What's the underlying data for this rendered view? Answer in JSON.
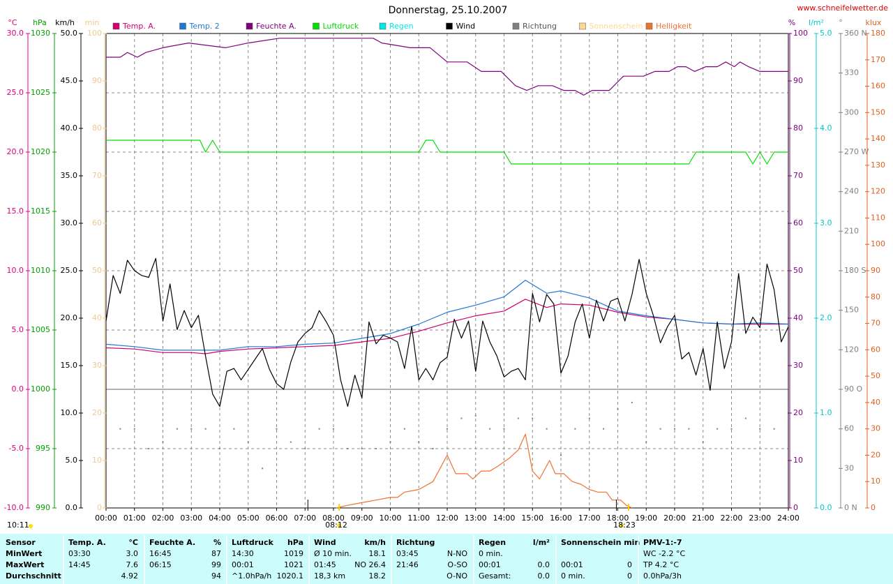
{
  "chart_data": {
    "type": "line",
    "title": "Donnerstag, 25.10.2007",
    "site": "www.schneifelwetter.de",
    "time": "10:11",
    "sunrise": "08:12",
    "sunset": "18:23",
    "grid": true,
    "xlim": [
      0,
      24
    ],
    "xticks": [
      {
        "value": 0,
        "label": "00:00"
      },
      {
        "value": 1,
        "label": "01:00"
      },
      {
        "value": 2,
        "label": "02:00"
      },
      {
        "value": 3,
        "label": "03:00"
      },
      {
        "value": 4,
        "label": "04:00"
      },
      {
        "value": 5,
        "label": "05:00"
      },
      {
        "value": 6,
        "label": "06:00"
      },
      {
        "value": 7,
        "label": "07:00"
      },
      {
        "value": 8,
        "label": "08:00"
      },
      {
        "value": 9,
        "label": "09:00"
      },
      {
        "value": 10,
        "label": "10:00"
      },
      {
        "value": 11,
        "label": "11:00"
      },
      {
        "value": 12,
        "label": "12:00"
      },
      {
        "value": 13,
        "label": "13:00"
      },
      {
        "value": 14,
        "label": "14:00"
      },
      {
        "value": 15,
        "label": "15:00"
      },
      {
        "value": 16,
        "label": "16:00"
      },
      {
        "value": 17,
        "label": "17:00"
      },
      {
        "value": 18,
        "label": "18:00"
      },
      {
        "value": 19,
        "label": "19:00"
      },
      {
        "value": 20,
        "label": "20:00"
      },
      {
        "value": 21,
        "label": "21:00"
      },
      {
        "value": 22,
        "label": "22:00"
      },
      {
        "value": 23,
        "label": "23:00"
      },
      {
        "value": 24,
        "label": "24:00"
      }
    ],
    "axes": [
      {
        "unit": "°C",
        "color": "#e0007c",
        "ylim": [
          -10,
          30
        ],
        "yticks": [
          {
            "value": 30,
            "label": "30.0"
          },
          {
            "value": 25,
            "label": "25.0"
          },
          {
            "value": 20,
            "label": "20.0"
          },
          {
            "value": 15,
            "label": "15.0"
          },
          {
            "value": 10,
            "label": "10.0"
          },
          {
            "value": 5,
            "label": "5.0"
          },
          {
            "value": 0,
            "label": "0.0"
          },
          {
            "value": -5,
            "label": "-5.0"
          },
          {
            "value": -10,
            "label": "-10.0"
          }
        ]
      },
      {
        "unit": "hPa",
        "color": "#00a000",
        "ylim": [
          990,
          1030
        ],
        "yticks": [
          1030,
          1025,
          1020,
          1015,
          1010,
          1005,
          1000,
          995,
          990
        ]
      },
      {
        "unit": "km/h",
        "color": "#000000",
        "ylim": [
          0,
          50
        ],
        "yticks": [
          {
            "value": 50,
            "label": "50.0"
          },
          {
            "value": 45,
            "label": "45.0"
          },
          {
            "value": 40,
            "label": "40.0"
          },
          {
            "value": 35,
            "label": "35.0"
          },
          {
            "value": 30,
            "label": "30.0"
          },
          {
            "value": 25,
            "label": "25.0"
          },
          {
            "value": 20,
            "label": "20.0"
          },
          {
            "value": 15,
            "label": "15.0"
          },
          {
            "value": 10,
            "label": "10.0"
          },
          {
            "value": 5,
            "label": "5.0"
          },
          {
            "value": 0,
            "label": "0.0"
          }
        ]
      },
      {
        "unit": "min",
        "color": "#f0c890",
        "ylim": [
          0,
          100
        ],
        "yticks": [
          100,
          90,
          80,
          70,
          60,
          50,
          40,
          30,
          20,
          10,
          0
        ]
      },
      {
        "unit": "%",
        "color": "#800080",
        "ylim": [
          0,
          100
        ],
        "yticks": [
          100,
          90,
          80,
          70,
          60,
          50,
          40,
          30,
          20,
          10,
          0
        ]
      },
      {
        "unit": "l/m²",
        "color": "#00c8c8",
        "ylim": [
          0,
          5
        ],
        "yticks": [
          {
            "value": 5,
            "label": "5.0"
          },
          {
            "value": 4,
            "label": "4.0"
          },
          {
            "value": 3,
            "label": "3.0"
          },
          {
            "value": 2,
            "label": "2.0"
          },
          {
            "value": 1,
            "label": "1.0"
          },
          {
            "value": 0,
            "label": "0.0"
          }
        ]
      },
      {
        "unit": "°",
        "color": "#808080",
        "ylim": [
          0,
          360
        ],
        "yticks": [
          {
            "value": 360,
            "label": "360 N"
          },
          330,
          300,
          {
            "value": 270,
            "label": "270 W"
          },
          240,
          210,
          {
            "value": 180,
            "label": "180 S"
          },
          150,
          120,
          {
            "value": 90,
            "label": "90 O"
          },
          60,
          30,
          {
            "value": 0,
            "label": "0 N"
          }
        ]
      },
      {
        "unit": "klux",
        "color": "#e06020",
        "ylim": [
          0,
          180
        ],
        "yticks": [
          180,
          170,
          160,
          150,
          140,
          130,
          120,
          110,
          100,
          90,
          80,
          70,
          60,
          50,
          40,
          30,
          20,
          10,
          0
        ]
      }
    ],
    "series": [
      {
        "name": "Temp. A.",
        "color": "#d0006f",
        "axis": 0,
        "x": [
          0,
          1,
          2,
          3,
          3.5,
          4,
          5,
          6,
          7,
          8,
          9,
          10,
          11,
          12,
          13,
          14,
          14.75,
          15.5,
          16,
          17,
          18,
          19,
          20,
          21,
          22,
          23,
          24
        ],
        "values": [
          3.5,
          3.4,
          3.1,
          3.1,
          3.0,
          3.2,
          3.4,
          3.5,
          3.6,
          3.7,
          4.0,
          4.3,
          4.9,
          5.6,
          6.2,
          6.6,
          7.6,
          6.9,
          7.2,
          7.1,
          6.5,
          6.1,
          5.9,
          5.6,
          5.5,
          5.5,
          5.5
        ]
      },
      {
        "name": "Temp. 2",
        "color": "#1e78d7",
        "axis": 0,
        "x": [
          0,
          1,
          2,
          3,
          3.5,
          4,
          5,
          6,
          7,
          8,
          9,
          10,
          11,
          12,
          13,
          14,
          14.75,
          15.5,
          16,
          17,
          18,
          19,
          20,
          21,
          22,
          23,
          24
        ],
        "values": [
          3.8,
          3.6,
          3.3,
          3.3,
          3.3,
          3.3,
          3.6,
          3.6,
          3.8,
          3.9,
          4.3,
          4.7,
          5.5,
          6.5,
          7.1,
          7.8,
          9.2,
          8.1,
          8.3,
          7.7,
          6.6,
          6.2,
          5.9,
          5.6,
          5.5,
          5.6,
          5.5
        ]
      },
      {
        "name": "Feuchte A.",
        "color": "#800080",
        "axis": 4,
        "x": [
          0,
          0.5,
          0.75,
          1.1,
          1.4,
          2,
          2.9,
          4.2,
          5,
          6.1,
          9.4,
          9.7,
          10.7,
          11.4,
          12,
          12.7,
          13.2,
          13.9,
          14.4,
          14.8,
          15.2,
          15.7,
          16.1,
          16.5,
          16.8,
          17.1,
          17.7,
          18.2,
          18.9,
          19.3,
          19.8,
          20.1,
          20.4,
          20.7,
          21.1,
          21.5,
          21.8,
          22.1,
          22.3,
          22.6,
          23,
          24
        ],
        "values": [
          95,
          95,
          96,
          95,
          96,
          97,
          98,
          97,
          98,
          99,
          99,
          98,
          97,
          97,
          94,
          94,
          92,
          92,
          89,
          88,
          89,
          89,
          88,
          88,
          87,
          88,
          88,
          91,
          91,
          92,
          92,
          93,
          93,
          92,
          93,
          93,
          94,
          93,
          94,
          93,
          92,
          92
        ]
      },
      {
        "name": "Luftdruck",
        "color": "#00e000",
        "axis": 1,
        "x": [
          0,
          3.3,
          3.5,
          3.75,
          4,
          11,
          11.25,
          11.5,
          11.75,
          14,
          14.25,
          20.5,
          20.75,
          22.5,
          22.75,
          23,
          23.25,
          23.5,
          24
        ],
        "values": [
          1021,
          1021,
          1020,
          1021,
          1020,
          1020,
          1021,
          1021,
          1020,
          1020,
          1019,
          1019,
          1020,
          1020,
          1019,
          1020,
          1019,
          1020,
          1020
        ]
      },
      {
        "name": "Regen",
        "color": "#00e8e8",
        "axis": 5
      },
      {
        "name": "Wind",
        "color": "#000000",
        "axis": 2,
        "x": [
          0,
          0.25,
          0.5,
          0.75,
          1,
          1.25,
          1.5,
          1.75,
          2,
          2.25,
          2.5,
          2.75,
          3,
          3.25,
          3.5,
          3.75,
          4,
          4.25,
          4.5,
          4.75,
          5,
          5.25,
          5.5,
          5.75,
          6,
          6.25,
          6.5,
          6.75,
          7,
          7.25,
          7.5,
          7.75,
          8,
          8.25,
          8.5,
          8.75,
          9,
          9.25,
          9.5,
          9.75,
          10,
          10.25,
          10.5,
          10.75,
          11,
          11.25,
          11.5,
          11.75,
          12,
          12.25,
          12.5,
          12.75,
          13,
          13.25,
          13.5,
          13.75,
          14,
          14.25,
          14.5,
          14.75,
          15,
          15.25,
          15.5,
          15.75,
          16,
          16.25,
          16.5,
          16.75,
          17,
          17.25,
          17.5,
          17.75,
          18,
          18.25,
          18.5,
          18.75,
          19,
          19.25,
          19.5,
          19.75,
          20,
          20.25,
          20.5,
          20.75,
          21,
          21.25,
          21.5,
          21.75,
          22,
          22.25,
          22.5,
          22.75,
          23,
          23.25,
          23.5,
          23.75,
          24
        ],
        "values": [
          19.7,
          24.5,
          22.6,
          26.1,
          25.0,
          24.5,
          24.3,
          26.3,
          19.7,
          23.6,
          18.8,
          20.8,
          19.0,
          20.3,
          16.0,
          12.0,
          10.7,
          14.4,
          14.7,
          13.5,
          14.6,
          15.7,
          16.8,
          14.6,
          13.1,
          12.5,
          15.4,
          17.5,
          18.4,
          19.0,
          20.8,
          19.6,
          18.2,
          13.5,
          10.7,
          14.0,
          11.6,
          19.6,
          17.3,
          18.2,
          17.9,
          17.5,
          14.7,
          19.1,
          13.5,
          14.7,
          13.5,
          15.3,
          15.9,
          19.9,
          17.9,
          19.7,
          14.4,
          19.7,
          17.5,
          16.0,
          13.8,
          14.4,
          14.7,
          13.5,
          22.6,
          19.6,
          22.5,
          21.5,
          14.2,
          16.0,
          19.6,
          21.5,
          17.9,
          21.9,
          19.7,
          21.8,
          22.1,
          19.7,
          22.5,
          26.2,
          22.6,
          20.3,
          17.4,
          19.1,
          20.3,
          15.7,
          16.4,
          14.0,
          16.8,
          12.4,
          19.6,
          14.7,
          17.5,
          24.7,
          18.4,
          20.1,
          19.0,
          25.7,
          23.0,
          17.5,
          19.1
        ]
      },
      {
        "name": "Richtung",
        "color": "#808080",
        "axis": 6,
        "style": "dots",
        "x": [
          0,
          0.5,
          1,
          1.5,
          2,
          2.5,
          3,
          3.5,
          4,
          4.5,
          5,
          5.5,
          6,
          6.5,
          7,
          7.5,
          8,
          8.5,
          9,
          9.5,
          10,
          10.5,
          11,
          11.5,
          12,
          12.5,
          13,
          13.5,
          14,
          14.5,
          15,
          15.5,
          16,
          16.5,
          17,
          17.5,
          18,
          18.5,
          19,
          19.5,
          20,
          20.5,
          21,
          21.5,
          22,
          22.5,
          23,
          23.5,
          24
        ],
        "values": [
          60,
          60,
          60,
          45,
          50,
          60,
          60,
          60,
          45,
          60,
          50,
          30,
          60,
          50,
          45,
          60,
          60,
          45,
          45,
          45,
          50,
          60,
          50,
          45,
          60,
          68,
          70,
          60,
          60,
          68,
          68,
          60,
          40,
          60,
          68,
          60,
          75,
          80,
          50,
          60,
          60,
          60,
          50,
          60,
          60,
          68,
          60,
          60,
          80
        ]
      },
      {
        "name": "Sonnenschein",
        "color": "#ffd890",
        "axis": 3
      },
      {
        "name": "Helligkeit",
        "color": "#f07030",
        "axis": 7,
        "x": [
          8.1,
          8.5,
          9,
          9.5,
          10,
          10.25,
          10.5,
          11,
          11.5,
          12,
          12.3,
          12.7,
          12.9,
          13.2,
          13.5,
          13.8,
          14.2,
          14.5,
          14.75,
          15,
          15.25,
          15.6,
          15.8,
          16.1,
          16.4,
          16.7,
          17,
          17.3,
          17.6,
          17.8,
          18.1,
          18.3,
          18.5
        ],
        "values": [
          0,
          1,
          2,
          3,
          4,
          4,
          6,
          7,
          10,
          20,
          13,
          13,
          11,
          14,
          14,
          16,
          19,
          22,
          28,
          14,
          11,
          18,
          13,
          13,
          10,
          9,
          7,
          6,
          6,
          3,
          3,
          1,
          0
        ]
      }
    ]
  },
  "table": {
    "rows": [
      [
        {
          "l": "Sensor"
        },
        {
          "l": "Temp. A.",
          "r": "°C"
        },
        {
          "l": "Feuchte A.",
          "r": "%"
        },
        {
          "l": "Luftdruck",
          "r": "hPa"
        },
        {
          "l": "Wind",
          "r": "km/h"
        },
        {
          "l": "Richtung"
        },
        {
          "l": "Regen",
          "r": "l/m²"
        },
        {
          "l": "Sonnenschein min"
        },
        {
          "l": "PMV-1:-7"
        }
      ],
      [
        {
          "l": "MinWert"
        },
        {
          "l": "03:30",
          "r": "3.0"
        },
        {
          "l": "16:45",
          "r": "87"
        },
        {
          "l": "14:30",
          "r": "1019"
        },
        {
          "l": "Ø 10 min.",
          "r": "18.1"
        },
        {
          "l": "03:45",
          "r": "N-NO"
        },
        {
          "l": "0 min."
        },
        {},
        {
          "l": "WC -2.2 °C"
        }
      ],
      [
        {
          "l": "MaxWert"
        },
        {
          "l": "14:45",
          "r": "7.6"
        },
        {
          "l": "06:15",
          "r": "99"
        },
        {
          "l": "00:01",
          "r": "1021"
        },
        {
          "l": "01:45",
          "r": "NO 26.4"
        },
        {
          "l": "21:46",
          "r": "O-SO"
        },
        {
          "l": "00:01",
          "r": "0.0"
        },
        {
          "l": "00:01",
          "r": "0"
        },
        {
          "l": "TP 4.2 °C"
        }
      ],
      [
        {
          "l": "Durchschnitt"
        },
        {
          "r": "4.92"
        },
        {
          "r": "94"
        },
        {
          "l": "^1.0hPa/h",
          "r": "1020.1"
        },
        {
          "l": "18,3 km",
          "r": "18.2"
        },
        {
          "r": "O-NO"
        },
        {
          "l": "Gesamt:",
          "r": "0.0"
        },
        {
          "l": "0 min.",
          "r": "0"
        },
        {
          "l": "0.0hPa/3h"
        }
      ]
    ]
  }
}
